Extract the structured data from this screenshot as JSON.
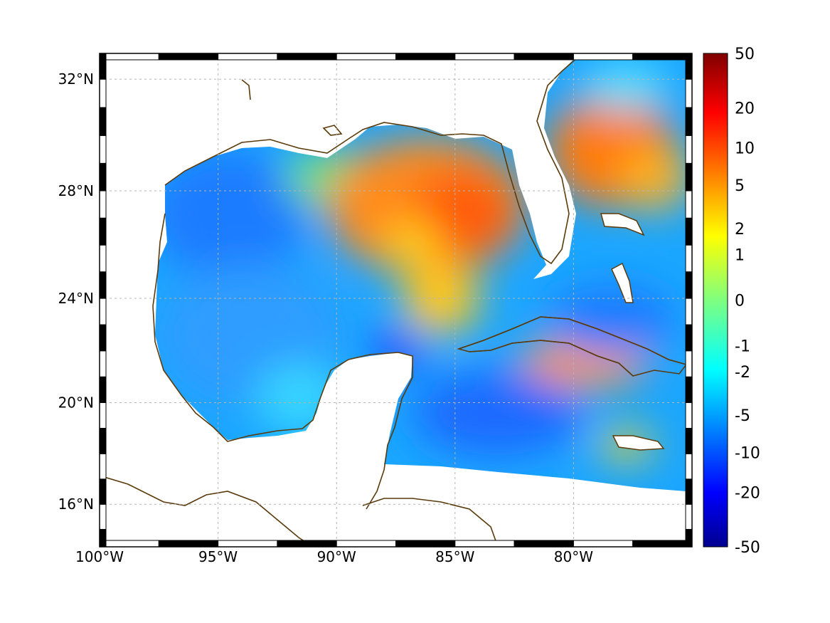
{
  "map": {
    "projection": "mercator",
    "lon_range": [
      -100,
      -75
    ],
    "lat_range": [
      14.3,
      32.9
    ],
    "x_ticks": [
      {
        "value": -100,
        "label": "100°W"
      },
      {
        "value": -95,
        "label": "95°W"
      },
      {
        "value": -90,
        "label": "90°W"
      },
      {
        "value": -85,
        "label": "85°W"
      },
      {
        "value": -80,
        "label": "80°W"
      }
    ],
    "y_ticks": [
      {
        "value": 16,
        "label": "16°N"
      },
      {
        "value": 20,
        "label": "20°N"
      },
      {
        "value": 24,
        "label": "24°N"
      },
      {
        "value": 28,
        "label": "28°N"
      },
      {
        "value": 32,
        "label": "32°N"
      }
    ],
    "grid": true,
    "coastline_color": "#5a3a0a",
    "colormap": "jet"
  },
  "colorbar": {
    "range": [
      -50,
      50
    ],
    "scale": "symmetric-log",
    "placement": "right",
    "labels": [
      "50",
      "20",
      "10",
      "5",
      "2",
      "1",
      "0",
      "-1",
      "-2",
      "-5",
      "-10",
      "-20",
      "-50"
    ]
  }
}
